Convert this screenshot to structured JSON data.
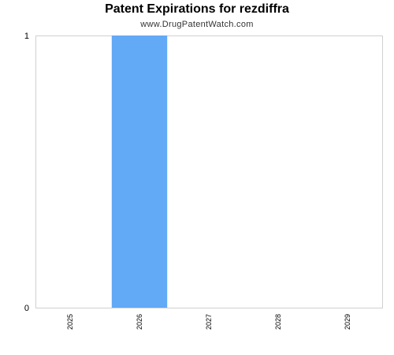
{
  "chart_data": {
    "type": "bar",
    "title": "Patent Expirations for rezdiffra",
    "subtitle": "www.DrugPatentWatch.com",
    "categories": [
      "2025",
      "2026",
      "2027",
      "2028",
      "2029"
    ],
    "values": [
      0,
      1,
      0,
      0,
      0
    ],
    "ylim": [
      0,
      1
    ],
    "yticks": [
      "0",
      "1"
    ],
    "xlabel": "",
    "ylabel": "",
    "grid": false,
    "legend": "none",
    "bar_color": "#62a9f6",
    "axis_color": "#d0d0d0"
  }
}
